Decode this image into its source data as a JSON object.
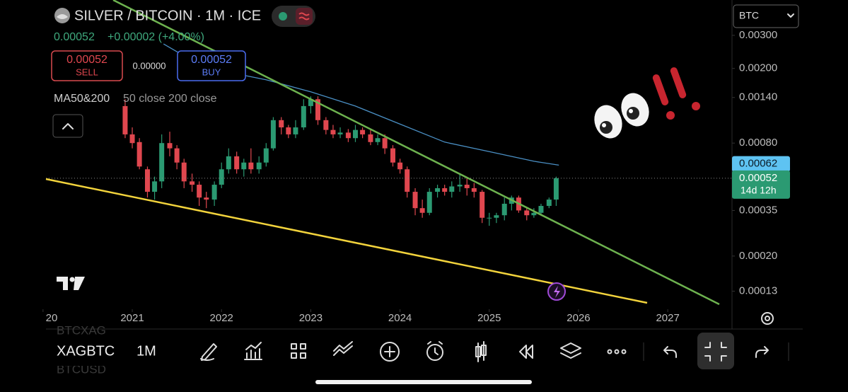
{
  "header": {
    "symbol": "SILVER / BITCOIN · 1M · ICE",
    "quote": "0.00052",
    "change": "+0.00002 (+4.00%)"
  },
  "trade": {
    "sell_price": "0.00052",
    "sell": "SELL",
    "spread": "0.00000",
    "buy_price": "0.00052",
    "buy": "BUY"
  },
  "indicator": "MA50&200",
  "indicator_params": "50 close 200 close",
  "currency": "BTC",
  "chart_data": {
    "type": "candlestick",
    "up_color": "#2b9a72",
    "down_color": "#e0474f",
    "x": [
      2020.92,
      2021.0,
      2021.08,
      2021.17,
      2021.25,
      2021.33,
      2021.42,
      2021.5,
      2021.58,
      2021.67,
      2021.75,
      2021.83,
      2021.92,
      2022.0,
      2022.08,
      2022.17,
      2022.25,
      2022.33,
      2022.42,
      2022.5,
      2022.58,
      2022.67,
      2022.75,
      2022.83,
      2022.92,
      2023.0,
      2023.08,
      2023.17,
      2023.25,
      2023.33,
      2023.42,
      2023.5,
      2023.58,
      2023.67,
      2023.75,
      2023.83,
      2023.92,
      2024.0,
      2024.08,
      2024.17,
      2024.25,
      2024.33,
      2024.42,
      2024.5,
      2024.58,
      2024.67,
      2024.75,
      2024.83,
      2024.92,
      2025.0,
      2025.08,
      2025.17,
      2025.25,
      2025.33,
      2025.42,
      2025.5,
      2025.58,
      2025.67,
      2025.75
    ],
    "open": [
      0.00126,
      0.00089,
      0.00081,
      0.00058,
      0.00044,
      0.0005,
      0.0008,
      0.00075,
      0.00063,
      0.0005,
      0.00048,
      0.00041,
      0.0004,
      0.00048,
      0.00058,
      0.00068,
      0.00058,
      0.00063,
      0.00058,
      0.00063,
      0.00075,
      0.00106,
      0.00097,
      0.00089,
      0.00097,
      0.00126,
      0.00137,
      0.00106,
      0.00094,
      0.00089,
      0.00091,
      0.00085,
      0.00094,
      0.00089,
      0.00081,
      0.00085,
      0.00075,
      0.00063,
      0.00058,
      0.00044,
      0.00036,
      0.00034,
      0.00044,
      0.00046,
      0.00044,
      0.00047,
      0.00048,
      0.00046,
      0.00044,
      0.00032,
      0.00032,
      0.00033,
      0.00038,
      0.00041,
      0.00035,
      0.00033,
      0.00034,
      0.00037,
      0.0004
    ],
    "high": [
      0.00137,
      0.00097,
      0.00085,
      0.0006,
      0.00053,
      0.00089,
      0.00092,
      0.00078,
      0.00066,
      0.00055,
      0.0005,
      0.00044,
      0.0005,
      0.00063,
      0.00075,
      0.00072,
      0.00066,
      0.00075,
      0.00068,
      0.0008,
      0.0011,
      0.0011,
      0.001,
      0.00106,
      0.00137,
      0.00142,
      0.00142,
      0.0011,
      0.001,
      0.00097,
      0.00095,
      0.001,
      0.00097,
      0.00094,
      0.00089,
      0.00089,
      0.00078,
      0.00066,
      0.0006,
      0.00046,
      0.0004,
      0.00046,
      0.00048,
      0.00048,
      0.0005,
      0.00055,
      0.00052,
      0.00049,
      0.00045,
      0.00034,
      0.00034,
      0.00041,
      0.00042,
      0.00042,
      0.00036,
      0.00036,
      0.00038,
      0.00041,
      0.00053
    ],
    "low": [
      0.00085,
      0.00075,
      0.00058,
      0.00041,
      0.0004,
      0.00046,
      0.00068,
      0.00058,
      0.00046,
      0.00044,
      0.00037,
      0.00036,
      0.00037,
      0.00046,
      0.00055,
      0.00055,
      0.00053,
      0.00055,
      0.00055,
      0.0006,
      0.00073,
      0.00089,
      0.00085,
      0.00085,
      0.00094,
      0.00115,
      0.001,
      0.00089,
      0.00085,
      0.00085,
      0.00081,
      0.00081,
      0.00085,
      0.00078,
      0.00078,
      0.0007,
      0.0006,
      0.00055,
      0.00041,
      0.00033,
      0.00032,
      0.00033,
      0.00041,
      0.00042,
      0.00041,
      0.00044,
      0.00042,
      0.00041,
      0.0003,
      0.00029,
      0.0003,
      0.00031,
      0.00035,
      0.00034,
      0.00031,
      0.00032,
      0.00033,
      0.00036,
      0.00037
    ],
    "close": [
      0.00089,
      0.0008,
      0.0006,
      0.00044,
      0.0005,
      0.0008,
      0.00075,
      0.00063,
      0.0005,
      0.00048,
      0.00041,
      0.0004,
      0.00048,
      0.00058,
      0.00068,
      0.00058,
      0.00063,
      0.00058,
      0.00063,
      0.00075,
      0.00106,
      0.00097,
      0.00089,
      0.00097,
      0.00126,
      0.00137,
      0.00106,
      0.00094,
      0.00089,
      0.00091,
      0.00085,
      0.00094,
      0.00089,
      0.00081,
      0.00085,
      0.00075,
      0.00063,
      0.00058,
      0.00044,
      0.00036,
      0.00034,
      0.00044,
      0.00046,
      0.00044,
      0.00047,
      0.00048,
      0.00046,
      0.00044,
      0.00032,
      0.00032,
      0.00033,
      0.00038,
      0.00041,
      0.00035,
      0.00033,
      0.00034,
      0.00037,
      0.0004,
      0.00052
    ],
    "ma": {
      "color": "#4a8fc4",
      "x": [
        2021.35,
        2021.8,
        2022.5,
        2023.0,
        2023.5,
        2024.0,
        2024.5,
        2025.0,
        2025.5,
        2025.78
      ],
      "values": [
        0.0027,
        0.00203,
        0.00174,
        0.0015,
        0.00126,
        0.00101,
        0.00081,
        0.00072,
        0.00064,
        0.00061
      ]
    },
    "log": true,
    "ylim": [
      0.000106,
      0.00463
    ],
    "yticks": [
      {
        "value": 0.003,
        "label": "0.00300"
      },
      {
        "value": 0.002,
        "label": "0.00200"
      },
      {
        "value": 0.0014,
        "label": "0.00140"
      },
      {
        "value": 0.0008,
        "label": "0.00080"
      },
      {
        "value": 0.00035,
        "label": "0.00035"
      },
      {
        "value": 0.0002,
        "label": "0.00020"
      },
      {
        "value": 0.00013,
        "label": "0.00013"
      }
    ],
    "xlim": [
      2020.033,
      2027.72
    ],
    "xticks": [
      {
        "value": 2020,
        "label": "20"
      },
      2021,
      2022,
      2023,
      2024,
      2025,
      2026,
      2027
    ],
    "ma_price": {
      "value": 0.00062,
      "label": "0.00062"
    },
    "last_price": {
      "value": 0.00052,
      "label": "0.00052"
    },
    "countdown": "14d 12h"
  },
  "toolbar": {
    "symbol": "XAGBTC",
    "interval": "1M"
  },
  "watchlist": [
    "BTCXAG",
    "BTCUSD"
  ]
}
